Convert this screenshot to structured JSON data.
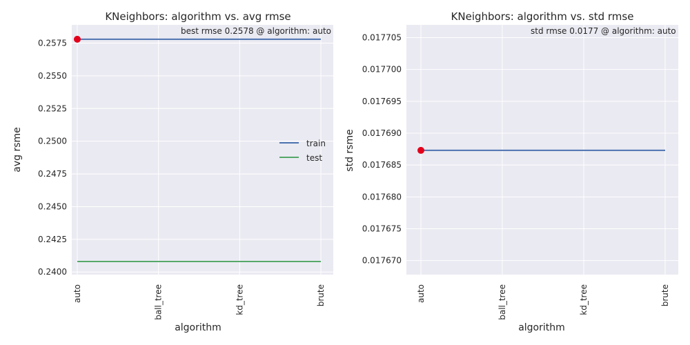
{
  "chart_data": [
    {
      "type": "line",
      "title": "KNeighbors: algorithm vs. avg rmse",
      "xlabel": "algorithm",
      "ylabel": "avg rsme",
      "categories": [
        "auto",
        "ball_tree",
        "kd_tree",
        "brute"
      ],
      "series": [
        {
          "name": "train",
          "color": "#4c72b0",
          "values": [
            0.2578,
            0.2578,
            0.2578,
            0.2578
          ]
        },
        {
          "name": "test",
          "color": "#55a868",
          "values": [
            0.2408,
            0.2408,
            0.2408,
            0.2408
          ]
        }
      ],
      "best_point": {
        "category": "auto",
        "value": 0.2578,
        "color": "#e3001b"
      },
      "annotation": "best rmse 0.2578 @ algorithm: auto",
      "ylim": [
        0.2398,
        0.2589
      ],
      "yticks": [
        0.24,
        0.2425,
        0.245,
        0.2475,
        0.25,
        0.2525,
        0.255,
        0.2575
      ],
      "ytick_labels": [
        "0.2400",
        "0.2425",
        "0.2450",
        "0.2475",
        "0.2500",
        "0.2525",
        "0.2550",
        "0.2575"
      ],
      "legend": "center-right",
      "grid": true
    },
    {
      "type": "line",
      "title": "KNeighbors: algorithm vs. std rmse",
      "xlabel": "algorithm",
      "ylabel": "std rsme",
      "categories": [
        "auto",
        "ball_tree",
        "kd_tree",
        "brute"
      ],
      "series": [
        {
          "color": "#4c72b0",
          "values": [
            0.0176873,
            0.0176873,
            0.0176873,
            0.0176873
          ]
        }
      ],
      "best_point": {
        "category": "auto",
        "value": 0.0176873,
        "color": "#e3001b"
      },
      "annotation": "std rmse 0.0177 @ algorithm: auto",
      "ylim": [
        0.0176678,
        0.017707
      ],
      "yticks": [
        0.0177,
        0.017695,
        0.01769,
        0.017685,
        0.01768,
        0.017675,
        0.01767,
        0.017705
      ],
      "ytick_labels": [
        "0.017700",
        "0.017695",
        "0.017690",
        "0.017685",
        "0.017680",
        "0.017675",
        "0.017670",
        "0.017705"
      ],
      "grid": true
    }
  ],
  "style": {
    "panel_bg": "#eaeaf2",
    "grid_color": "#ffffff"
  }
}
